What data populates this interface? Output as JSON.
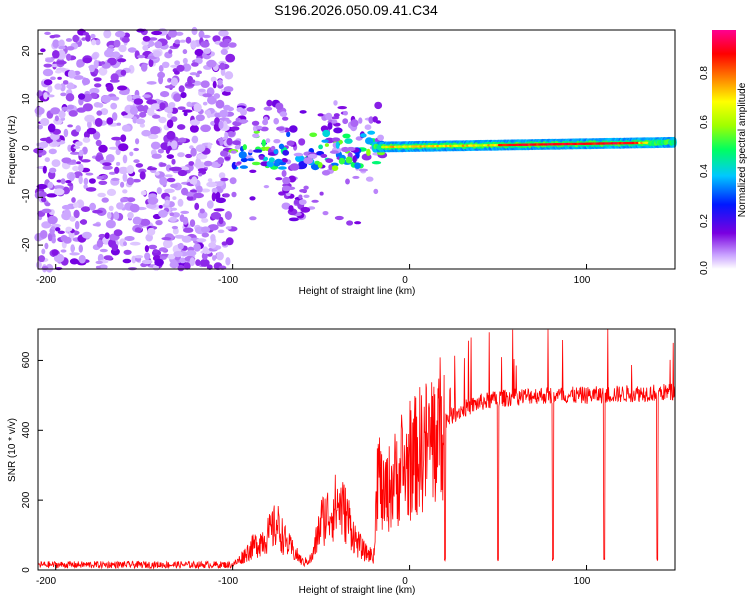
{
  "title": "S196.2026.050.09.41.C34",
  "chart_data": [
    {
      "type": "heatmap",
      "title": "S196.2026.050.09.41.C34",
      "xlabel": "Height of straight line (km)",
      "ylabel": "Frequency (Hz)",
      "xlim": [
        -210,
        150
      ],
      "ylim": [
        -25,
        25
      ],
      "xticks": [
        -200,
        -100,
        0,
        100
      ],
      "yticks": [
        -20,
        -10,
        0,
        10,
        20
      ],
      "colorbar": {
        "label": "Normalized spectral amplitude",
        "range": [
          0.0,
          1.0
        ],
        "ticks": [
          0.0,
          0.2,
          0.4,
          0.6,
          0.8
        ],
        "colors": [
          "#ffffff",
          "#c8a0ff",
          "#7a00e0",
          "#0018ff",
          "#00c8ff",
          "#00ff60",
          "#a0ff00",
          "#ffff00",
          "#ff8000",
          "#ff0000",
          "#ff0090"
        ]
      },
      "features": [
        {
          "name": "noise region",
          "x_range": [
            -210,
            -100
          ],
          "y_range": [
            -25,
            25
          ],
          "amplitude": 0.15
        },
        {
          "name": "transition scatter",
          "x_range": [
            -100,
            -15
          ],
          "y_range": [
            -16,
            10
          ],
          "amplitude": 0.4
        },
        {
          "name": "ridge",
          "x_range": [
            -20,
            150
          ],
          "frequency_start": 0.5,
          "frequency_end": 1.5,
          "amplitude": 0.95
        }
      ]
    },
    {
      "type": "line",
      "xlabel": "Height of straight line (km)",
      "ylabel": "SNR (10 * v/v)",
      "xlim": [
        -210,
        150
      ],
      "ylim": [
        0,
        690
      ],
      "xticks": [
        -200,
        -100,
        0,
        100
      ],
      "yticks": [
        0,
        200,
        400,
        600
      ],
      "series": [
        {
          "name": "SNR",
          "color": "#ff0000",
          "envelope_x": [
            -210,
            -100,
            -97,
            -90,
            -80,
            -75,
            -70,
            -60,
            -55,
            -50,
            -40,
            -35,
            -30,
            -25,
            -20,
            -18,
            -15,
            -10,
            -5,
            0,
            5,
            10,
            15,
            20,
            30,
            40,
            50,
            70,
            100,
            125,
            150
          ],
          "envelope_y": [
            15,
            15,
            25,
            60,
            100,
            130,
            80,
            20,
            35,
            140,
            190,
            150,
            80,
            50,
            40,
            300,
            200,
            250,
            280,
            300,
            340,
            360,
            380,
            430,
            460,
            480,
            490,
            500,
            500,
            505,
            510
          ],
          "drops_x": [
            20,
            50,
            81,
            110,
            140
          ],
          "spikes_y_max": 690
        }
      ]
    }
  ],
  "x_axis_title": "Height of straight line (km)",
  "top_y_axis_title": "Frequency (Hz)",
  "bottom_y_axis_title": "SNR (10 * v/v)",
  "colorbar_title": "Normalized spectral amplitude",
  "top_x_ticks": [
    "-200",
    "-100",
    "0",
    "100"
  ],
  "top_y_ticks": [
    "-20",
    "-10",
    "0",
    "10",
    "20"
  ],
  "bottom_x_ticks": [
    "-200",
    "-100",
    "0",
    "100"
  ],
  "bottom_y_ticks": [
    "0",
    "200",
    "400",
    "600"
  ],
  "colorbar_ticks": [
    "0.0",
    "0.2",
    "0.4",
    "0.6",
    "0.8"
  ]
}
